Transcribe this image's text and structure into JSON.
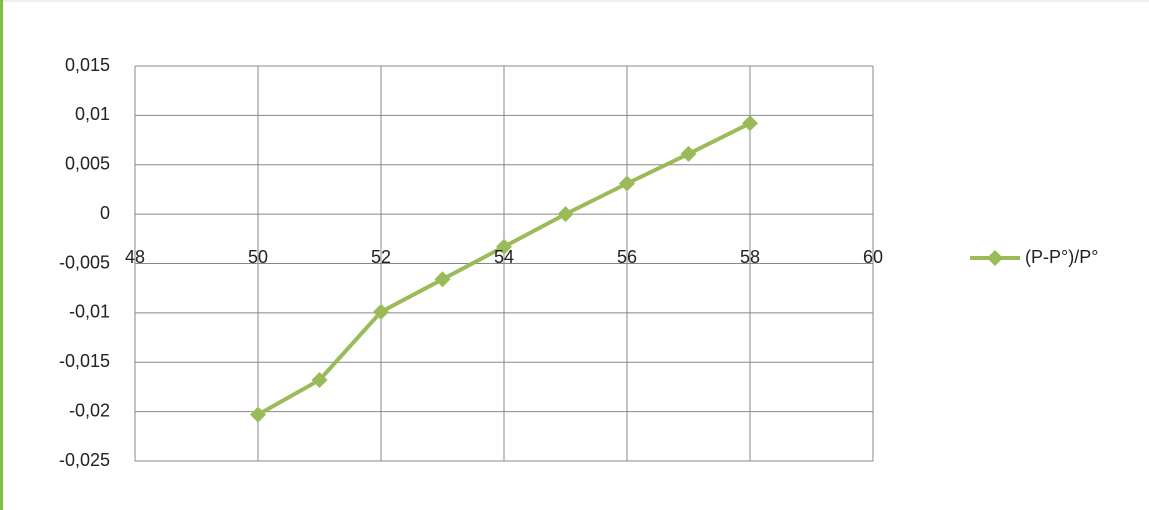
{
  "chart_data": {
    "type": "line",
    "x": [
      50,
      51,
      52,
      53,
      54,
      55,
      56,
      57,
      58
    ],
    "series": [
      {
        "name": "(P-P°)/P°",
        "color": "#9bbb59",
        "values": [
          -0.0203,
          -0.0168,
          -0.0099,
          -0.0066,
          -0.0033,
          0,
          0.0031,
          0.0061,
          0.0092
        ]
      }
    ],
    "xlim": [
      48,
      60
    ],
    "xticks": [
      48,
      50,
      52,
      54,
      56,
      58,
      60
    ],
    "ylim": [
      -0.025,
      0.015
    ],
    "yticks": [
      {
        "value": -0.025,
        "label": "-0,025"
      },
      {
        "value": -0.02,
        "label": "-0,02"
      },
      {
        "value": -0.015,
        "label": "-0,015"
      },
      {
        "value": -0.01,
        "label": "-0,01"
      },
      {
        "value": -0.005,
        "label": "-0,005"
      },
      0,
      {
        "value": 0.005,
        "label": "0,005"
      },
      {
        "value": 0.01,
        "label": "0,01"
      },
      {
        "value": 0.015,
        "label": "0,015"
      }
    ],
    "grid": true,
    "legend": "right"
  }
}
